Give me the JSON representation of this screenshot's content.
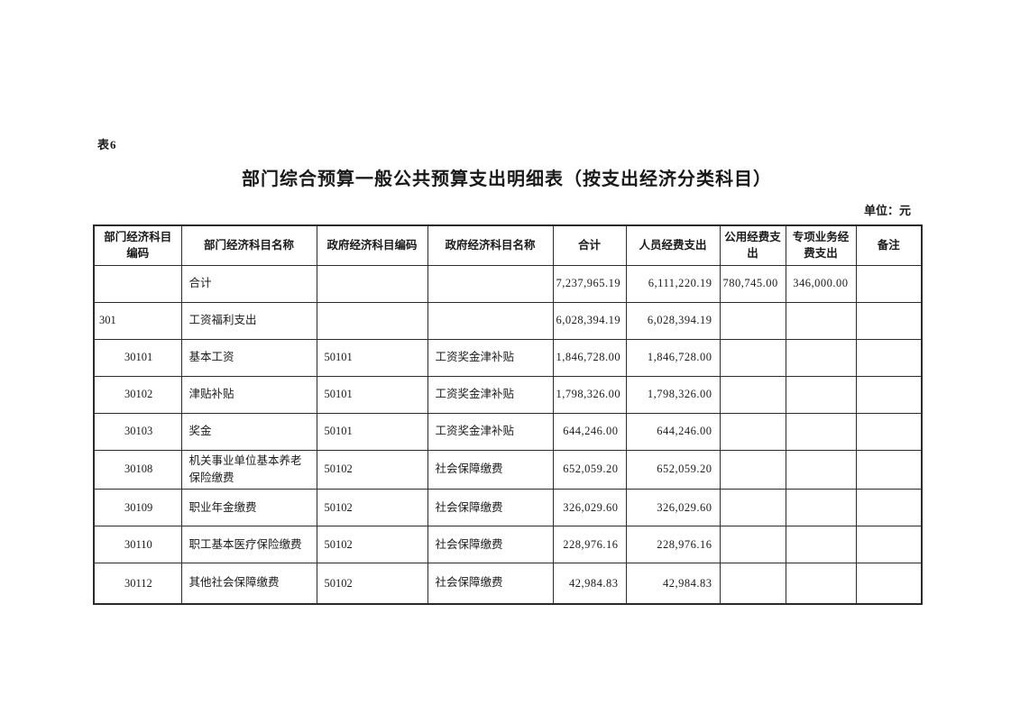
{
  "page": {
    "tag": "表6",
    "title": "部门综合预算一般公共预算支出明细表（按支出经济分类科目）",
    "unit_label": "单位：元"
  },
  "table": {
    "columns": [
      "部门经济科目\n编码",
      "部门经济科目名称",
      "政府经济科目编码",
      "政府经济科目名称",
      "合计",
      "人员经费支出",
      "公用经费支\n出",
      "专项业务经\n费支出",
      "备注"
    ],
    "rows": [
      {
        "code": "",
        "name": "合计",
        "gov_code": "",
        "gov_name": "",
        "total": "7,237,965.19",
        "personnel": "6,111,220.19",
        "public_fund": "780,745.00",
        "special_fund": "346,000.00",
        "note": ""
      },
      {
        "code": "301",
        "name": "工资福利支出",
        "gov_code": "",
        "gov_name": "",
        "total": "6,028,394.19",
        "personnel": "6,028,394.19",
        "public_fund": "",
        "special_fund": "",
        "note": ""
      },
      {
        "code": "30101",
        "name": "基本工资",
        "gov_code": "50101",
        "gov_name": "工资奖金津补贴",
        "total": "1,846,728.00",
        "personnel": "1,846,728.00",
        "public_fund": "",
        "special_fund": "",
        "note": ""
      },
      {
        "code": "30102",
        "name": "津贴补贴",
        "gov_code": "50101",
        "gov_name": "工资奖金津补贴",
        "total": "1,798,326.00",
        "personnel": "1,798,326.00",
        "public_fund": "",
        "special_fund": "",
        "note": ""
      },
      {
        "code": "30103",
        "name": "奖金",
        "gov_code": "50101",
        "gov_name": "工资奖金津补贴",
        "total": "644,246.00",
        "personnel": "644,246.00",
        "public_fund": "",
        "special_fund": "",
        "note": ""
      },
      {
        "code": "30108",
        "name": "机关事业单位基本养老保险缴费",
        "gov_code": "50102",
        "gov_name": "社会保障缴费",
        "total": "652,059.20",
        "personnel": "652,059.20",
        "public_fund": "",
        "special_fund": "",
        "note": ""
      },
      {
        "code": "30109",
        "name": "职业年金缴费",
        "gov_code": "50102",
        "gov_name": "社会保障缴费",
        "total": "326,029.60",
        "personnel": "326,029.60",
        "public_fund": "",
        "special_fund": "",
        "note": ""
      },
      {
        "code": "30110",
        "name": "职工基本医疗保险缴费",
        "gov_code": "50102",
        "gov_name": "社会保障缴费",
        "total": "228,976.16",
        "personnel": "228,976.16",
        "public_fund": "",
        "special_fund": "",
        "note": ""
      },
      {
        "code": "30112",
        "name": "其他社会保障缴费",
        "gov_code": "50102",
        "gov_name": "社会保障缴费",
        "total": "42,984.83",
        "personnel": "42,984.83",
        "public_fund": "",
        "special_fund": "",
        "note": ""
      }
    ]
  }
}
